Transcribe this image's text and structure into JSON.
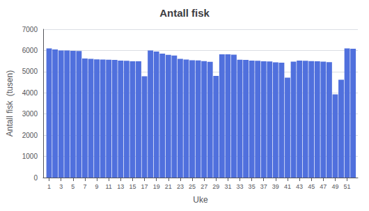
{
  "chart_data": {
    "type": "bar",
    "title": "Antall fisk",
    "xlabel": "Uke",
    "ylabel": "Antall fisk  (tusen)",
    "x": [
      1,
      2,
      3,
      4,
      5,
      6,
      7,
      8,
      9,
      10,
      11,
      12,
      13,
      14,
      15,
      16,
      17,
      18,
      19,
      20,
      21,
      22,
      23,
      24,
      25,
      26,
      27,
      28,
      29,
      30,
      31,
      32,
      33,
      34,
      35,
      36,
      37,
      38,
      39,
      40,
      41,
      42,
      43,
      44,
      45,
      46,
      47,
      48,
      49,
      50,
      51,
      52
    ],
    "values": [
      6100,
      6050,
      6000,
      6000,
      5980,
      5970,
      5620,
      5600,
      5580,
      5570,
      5560,
      5550,
      5520,
      5510,
      5490,
      5490,
      4780,
      6000,
      5950,
      5850,
      5790,
      5760,
      5600,
      5570,
      5540,
      5530,
      5500,
      5460,
      4800,
      5820,
      5820,
      5800,
      5560,
      5550,
      5520,
      5510,
      5490,
      5480,
      5440,
      5420,
      4720,
      5470,
      5520,
      5510,
      5500,
      5490,
      5470,
      5450,
      3930,
      4620,
      6100,
      6080
    ],
    "xlim": [
      0,
      52.8
    ],
    "xticks": [
      1,
      3,
      5,
      7,
      9,
      11,
      13,
      15,
      17,
      19,
      21,
      23,
      25,
      27,
      29,
      31,
      33,
      35,
      37,
      39,
      41,
      43,
      45,
      47,
      49,
      51
    ],
    "ylim": [
      0,
      7000
    ],
    "yticks": [
      0,
      1000,
      2000,
      3000,
      4000,
      5000,
      6000,
      7000
    ],
    "grid": true
  }
}
